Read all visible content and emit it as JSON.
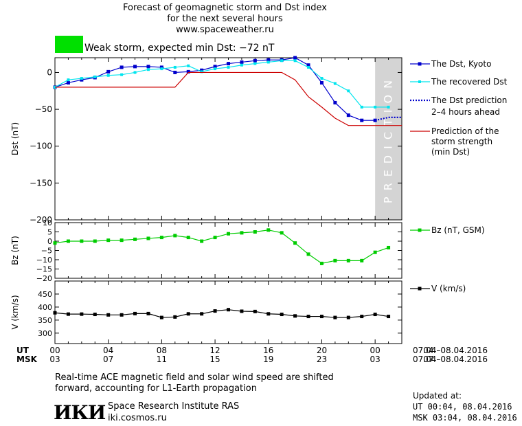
{
  "header": {
    "title_line1": "Forecast of geomagnetic storm and Dst index",
    "title_line2": "for the next several hours",
    "website": "www.spaceweather.ru",
    "storm_status": "Weak storm, expected min Dst: −72 nT",
    "storm_color": "#00e000"
  },
  "colors": {
    "dst_kyoto": "#0000cc",
    "dst_recovered": "#00e5ee",
    "prediction_line": "#0000cc",
    "storm_strength": "#cc0000",
    "bz": "#00cc00",
    "v": "#000000",
    "prediction_band": "#d4d4d4"
  },
  "legend": {
    "dst_kyoto": "The Dst, Kyoto",
    "dst_recovered": "The recovered Dst",
    "dst_prediction_line1": "The Dst prediction",
    "dst_prediction_line2": "2–4 hours ahead",
    "storm_strength_line1": "Prediction of the",
    "storm_strength_line2": "storm strength",
    "storm_strength_line3": "(min Dst)",
    "bz": "Bz (nT, GSM)",
    "v": "V (km/s)"
  },
  "axes": {
    "ut_label": "UT",
    "msk_label": "MSK",
    "ut_date_range": "07.04–08.04.2016",
    "msk_date_range": "07.04–08.04.2016",
    "prediction_band_label": "PREDICTION"
  },
  "chart_data": [
    {
      "type": "line",
      "panel": "dst",
      "ylabel": "Dst (nT)",
      "ylim": [
        -200,
        20
      ],
      "yticks": [
        0,
        -50,
        -100,
        -150,
        -200
      ],
      "xlim": [
        0,
        26
      ],
      "xticks_ut": [
        "00",
        "04",
        "08",
        "12",
        "16",
        "20",
        "00",
        "04"
      ],
      "xticks_msk": [
        "03",
        "07",
        "11",
        "15",
        "19",
        "23",
        "03",
        "07"
      ],
      "prediction_band_x": [
        24,
        26
      ],
      "series": [
        {
          "name": "The Dst, Kyoto",
          "x": [
            0,
            1,
            2,
            3,
            4,
            5,
            6,
            7,
            8,
            9,
            10,
            11,
            12,
            13,
            14,
            15,
            16,
            17,
            18,
            19,
            20,
            21,
            22,
            23,
            24
          ],
          "y": [
            -20,
            -14,
            -10,
            -7,
            1,
            7,
            8,
            8,
            7,
            0,
            1,
            3,
            8,
            12,
            14,
            16,
            17,
            17,
            20,
            10,
            -14,
            -41,
            -58,
            -65,
            -65
          ]
        },
        {
          "name": "The recovered Dst",
          "x": [
            0,
            1,
            2,
            3,
            4,
            5,
            6,
            7,
            8,
            9,
            10,
            11,
            12,
            13,
            14,
            15,
            16,
            17,
            18,
            19,
            20,
            21,
            22,
            23,
            24,
            25
          ],
          "y": [
            -20,
            -10,
            -8,
            -6,
            -4,
            -3,
            0,
            4,
            5,
            7,
            9,
            1,
            5,
            7,
            10,
            12,
            14,
            16,
            16,
            7,
            -8,
            -15,
            -25,
            -47,
            -47,
            -47
          ]
        },
        {
          "name": "The Dst prediction 2–4 hours ahead",
          "x": [
            24,
            25,
            26
          ],
          "y": [
            -65,
            -61,
            -61
          ]
        },
        {
          "name": "Prediction of the storm strength (min Dst)",
          "x": [
            0,
            9,
            10,
            17,
            18,
            19,
            20,
            21,
            22,
            23,
            26
          ],
          "y": [
            -20,
            -20,
            0,
            0,
            -10,
            -33,
            -47,
            -62,
            -72,
            -72,
            -72
          ]
        }
      ]
    },
    {
      "type": "line",
      "panel": "bz",
      "ylabel": "Bz (nT)",
      "ylim": [
        -20,
        10
      ],
      "yticks": [
        10,
        5,
        0,
        -5,
        -10,
        -15,
        -20
      ],
      "series": [
        {
          "name": "Bz (nT, GSM)",
          "x": [
            0,
            1,
            2,
            3,
            4,
            5,
            6,
            7,
            8,
            9,
            10,
            11,
            12,
            13,
            14,
            15,
            16,
            17,
            18,
            19,
            20,
            21,
            22,
            23,
            24,
            25
          ],
          "y": [
            -1,
            0,
            0,
            0,
            0.5,
            0.5,
            1,
            1.5,
            2,
            3,
            2,
            0,
            2,
            4,
            4.5,
            5,
            6,
            4.5,
            -1,
            -7,
            -12,
            -10.5,
            -10.5,
            -10.5,
            -6,
            -3.5
          ]
        }
      ]
    },
    {
      "type": "line",
      "panel": "v",
      "ylabel": "V (km/s)",
      "ylim": [
        260,
        500
      ],
      "yticks": [
        450,
        400,
        350,
        300
      ],
      "series": [
        {
          "name": "V (km/s)",
          "x": [
            0,
            1,
            2,
            3,
            4,
            5,
            6,
            7,
            8,
            9,
            10,
            11,
            12,
            13,
            14,
            15,
            16,
            17,
            18,
            19,
            20,
            21,
            22,
            23,
            24,
            25
          ],
          "y": [
            378,
            373,
            373,
            372,
            370,
            370,
            375,
            375,
            360,
            362,
            374,
            374,
            385,
            390,
            384,
            383,
            374,
            372,
            366,
            364,
            364,
            360,
            360,
            364,
            372,
            364
          ]
        }
      ]
    }
  ],
  "footer": {
    "note_line1": "Real-time ACE magnetic field and solar wind speed are shifted",
    "note_line2": "forward, accounting for L1-Earth propagation",
    "logo_text": "ИКИ",
    "institute_name": "Space Research Institute RAS",
    "institute_site": "iki.cosmos.ru",
    "updated_label": "Updated at:",
    "updated_ut": "UT   00:04, 08.04.2016",
    "updated_msk": "MSK 03:04, 08.04.2016"
  }
}
